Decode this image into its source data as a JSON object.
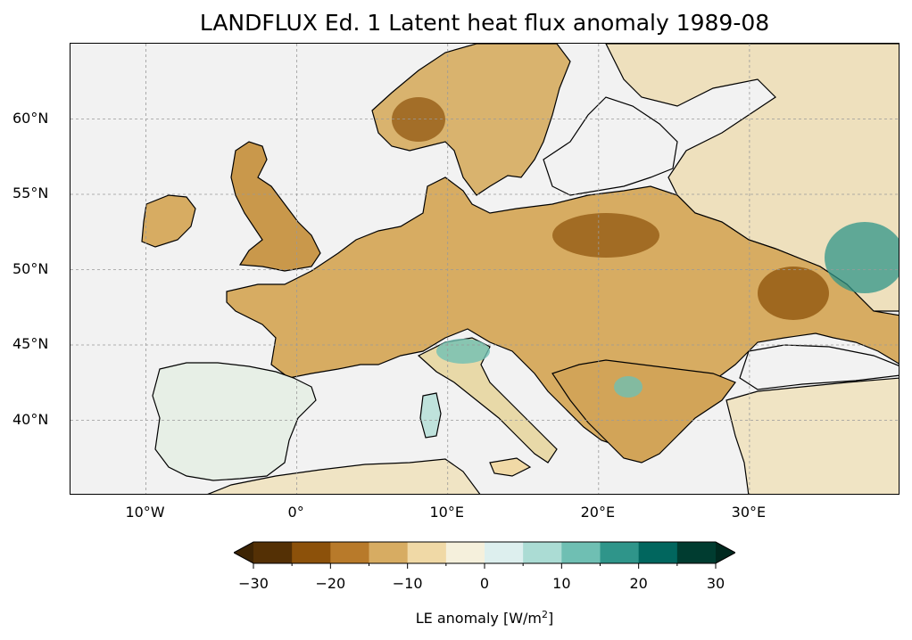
{
  "title": "LANDFLUX Ed. 1 Latent heat flux anomaly 1989-08",
  "map": {
    "lon_range": [
      -15,
      40
    ],
    "lat_range": [
      35,
      65
    ],
    "lat_ticks": [
      {
        "value": 60,
        "label": "60°N"
      },
      {
        "value": 55,
        "label": "55°N"
      },
      {
        "value": 50,
        "label": "50°N"
      },
      {
        "value": 45,
        "label": "45°N"
      },
      {
        "value": 40,
        "label": "40°N"
      }
    ],
    "lon_ticks": [
      {
        "value": -10,
        "label": "10°W"
      },
      {
        "value": 0,
        "label": "0°"
      },
      {
        "value": 10,
        "label": "10°E"
      },
      {
        "value": 20,
        "label": "20°E"
      },
      {
        "value": 30,
        "label": "30°E"
      }
    ],
    "gridlines": true,
    "ocean_color": "#f2f2f2",
    "border_color": "#000000"
  },
  "colorbar": {
    "label_prefix": "LE anomaly [W/m",
    "label_sup": "2",
    "label_suffix": "]",
    "range": [
      -30,
      30
    ],
    "extend": "both",
    "tick_labels": [
      {
        "value": -30,
        "label": "−30"
      },
      {
        "value": -20,
        "label": "−20"
      },
      {
        "value": -10,
        "label": "−10"
      },
      {
        "value": 0,
        "label": "0"
      },
      {
        "value": 10,
        "label": "10"
      },
      {
        "value": 20,
        "label": "20"
      },
      {
        "value": 30,
        "label": "30"
      }
    ],
    "colors": [
      "#543005",
      "#8c510a",
      "#b87a2a",
      "#d7ac62",
      "#f0d9a6",
      "#f5f0dc",
      "#ddefee",
      "#abdcd4",
      "#6fbfb3",
      "#2f958a",
      "#01665e",
      "#003c30"
    ]
  }
}
